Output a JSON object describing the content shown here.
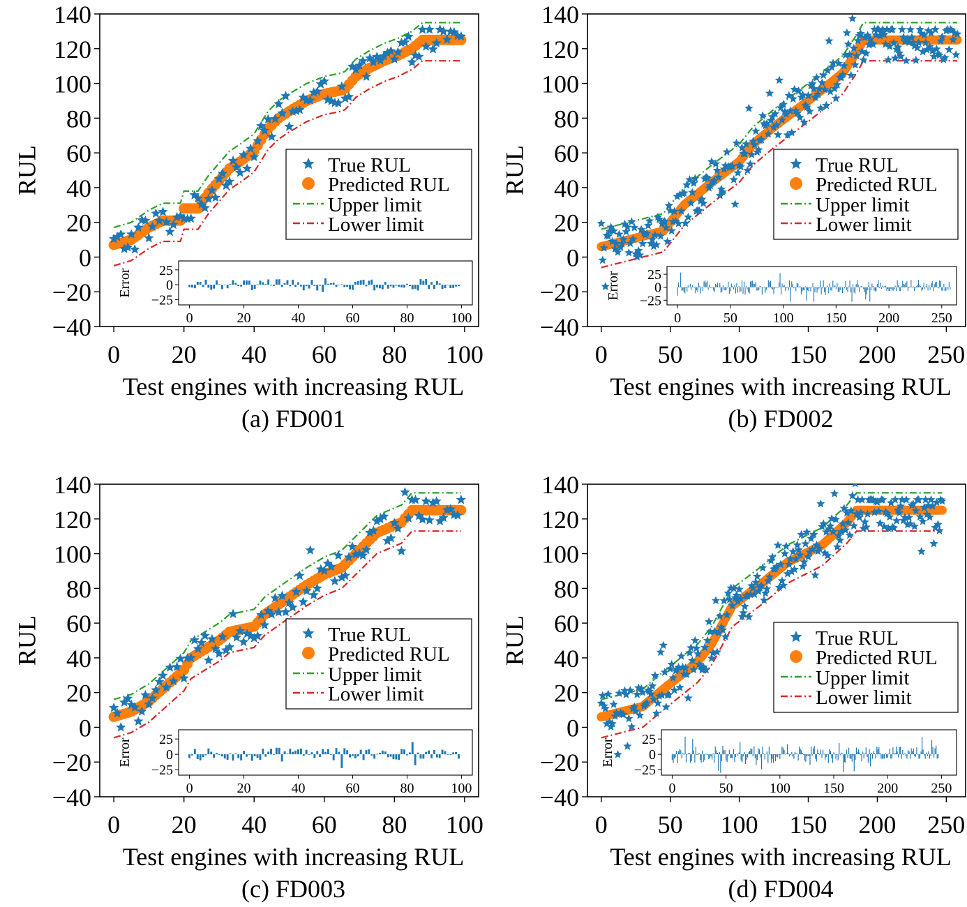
{
  "panels": [
    {
      "caption": "(a) FD001",
      "xlabel": "Test engines with increasing RUL",
      "ylabel": "RUL",
      "xticks": [
        0,
        20,
        40,
        60,
        80,
        100
      ],
      "yticks": [
        -40,
        -20,
        0,
        20,
        40,
        60,
        80,
        100,
        120,
        140
      ],
      "legend": [
        "True RUL",
        "Predicted RUL",
        "Upper limit",
        "Lower limit"
      ],
      "inset": {
        "ylabel": "Error",
        "yticks": [
          25,
          0,
          -25
        ],
        "xticks": [
          0,
          20,
          40,
          60,
          80,
          100
        ]
      }
    },
    {
      "caption": "(b) FD002",
      "xlabel": "Test engines with increasing RUL",
      "ylabel": "RUL",
      "xticks": [
        0,
        50,
        100,
        150,
        200,
        250
      ],
      "yticks": [
        -40,
        -20,
        0,
        20,
        40,
        60,
        80,
        100,
        120,
        140
      ],
      "legend": [
        "True RUL",
        "Predicted RUL",
        "Upper limit",
        "Lower limit"
      ],
      "inset": {
        "ylabel": "Error",
        "yticks": [
          25,
          0,
          -25
        ],
        "xticks": [
          0,
          50,
          100,
          150,
          200,
          250
        ]
      }
    },
    {
      "caption": "(c) FD003",
      "xlabel": "Test engines with increasing RUL",
      "ylabel": "RUL",
      "xticks": [
        0,
        20,
        40,
        60,
        80,
        100
      ],
      "yticks": [
        -40,
        -20,
        0,
        20,
        40,
        60,
        80,
        100,
        120,
        140
      ],
      "legend": [
        "True RUL",
        "Predicted RUL",
        "Upper limit",
        "Lower limit"
      ],
      "inset": {
        "ylabel": "Error",
        "yticks": [
          25,
          0,
          -25
        ],
        "xticks": [
          0,
          20,
          40,
          60,
          80,
          100
        ]
      }
    },
    {
      "caption": "(d) FD004",
      "xlabel": "Test engines with increasing RUL",
      "ylabel": "RUL",
      "xticks": [
        0,
        50,
        100,
        150,
        200,
        250
      ],
      "yticks": [
        -40,
        -20,
        0,
        20,
        40,
        60,
        80,
        100,
        120,
        140
      ],
      "legend": [
        "True RUL",
        "Predicted RUL",
        "Upper limit",
        "Lower limit"
      ],
      "inset": {
        "ylabel": "Error",
        "yticks": [
          25,
          0,
          -25
        ],
        "xticks": [
          0,
          50,
          100,
          150,
          200,
          250
        ]
      }
    }
  ],
  "colors": {
    "true": "#1f77b4",
    "predicted": "#ff7f0e",
    "upper": "#2ca02c",
    "lower": "#d62728",
    "error": "#1f77b4"
  },
  "chart_data": [
    {
      "type": "scatter",
      "xlim": [
        -4,
        104
      ],
      "ylim": [
        -40,
        140
      ],
      "n": 100,
      "predicted_knots": [
        [
          0,
          7
        ],
        [
          5,
          10
        ],
        [
          10,
          17
        ],
        [
          14,
          21
        ],
        [
          19,
          21
        ],
        [
          20,
          28
        ],
        [
          24,
          28
        ],
        [
          27,
          37
        ],
        [
          30,
          44
        ],
        [
          33,
          51
        ],
        [
          36,
          55
        ],
        [
          40,
          61
        ],
        [
          44,
          74
        ],
        [
          47,
          80
        ],
        [
          50,
          84
        ],
        [
          55,
          90
        ],
        [
          60,
          94
        ],
        [
          65,
          96
        ],
        [
          66,
          97
        ],
        [
          69,
          104
        ],
        [
          73,
          109
        ],
        [
          77,
          113
        ],
        [
          81,
          116
        ],
        [
          85,
          120
        ],
        [
          88,
          125
        ],
        [
          100,
          125
        ]
      ],
      "limit_offset": 10,
      "true_spread": 8,
      "error_spread": 9,
      "error_range": [
        -30,
        35
      ]
    },
    {
      "type": "scatter",
      "xlim": [
        -10,
        264
      ],
      "ylim": [
        -40,
        140
      ],
      "n": 259,
      "predicted_knots": [
        [
          0,
          6
        ],
        [
          20,
          10
        ],
        [
          45,
          15
        ],
        [
          60,
          30
        ],
        [
          80,
          43
        ],
        [
          100,
          55
        ],
        [
          110,
          65
        ],
        [
          125,
          75
        ],
        [
          150,
          90
        ],
        [
          175,
          106
        ],
        [
          185,
          118
        ],
        [
          190,
          125
        ],
        [
          259,
          125
        ]
      ],
      "limit_offset": 10,
      "true_spread": 12,
      "error_spread": 9,
      "error_range": [
        -28,
        30
      ]
    },
    {
      "type": "scatter",
      "xlim": [
        -4,
        104
      ],
      "ylim": [
        -40,
        140
      ],
      "n": 100,
      "predicted_knots": [
        [
          0,
          6
        ],
        [
          5,
          9
        ],
        [
          10,
          15
        ],
        [
          15,
          24
        ],
        [
          20,
          33
        ],
        [
          22,
          40
        ],
        [
          26,
          45
        ],
        [
          30,
          50
        ],
        [
          33,
          55
        ],
        [
          40,
          58
        ],
        [
          43,
          65
        ],
        [
          50,
          75
        ],
        [
          55,
          82
        ],
        [
          60,
          88
        ],
        [
          65,
          92
        ],
        [
          70,
          102
        ],
        [
          75,
          112
        ],
        [
          82,
          118
        ],
        [
          85,
          125
        ],
        [
          100,
          125
        ]
      ],
      "limit_offset": 10,
      "true_spread": 9,
      "error_spread": 10,
      "error_range": [
        -28,
        40
      ]
    },
    {
      "type": "scatter",
      "xlim": [
        -10,
        264
      ],
      "ylim": [
        -40,
        140
      ],
      "n": 248,
      "predicted_knots": [
        [
          0,
          6
        ],
        [
          30,
          12
        ],
        [
          45,
          22
        ],
        [
          70,
          38
        ],
        [
          80,
          48
        ],
        [
          95,
          70
        ],
        [
          115,
          82
        ],
        [
          135,
          95
        ],
        [
          160,
          105
        ],
        [
          178,
          118
        ],
        [
          185,
          125
        ],
        [
          248,
          125
        ]
      ],
      "limit_offset": 10,
      "true_spread": 12,
      "error_spread": 8,
      "error_range": [
        -35,
        30
      ]
    }
  ]
}
